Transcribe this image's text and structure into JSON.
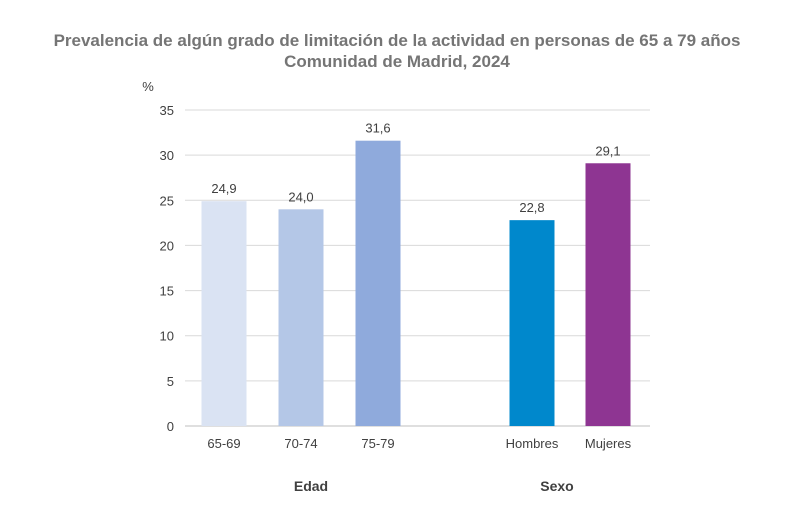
{
  "chart_data": {
    "type": "bar",
    "title": "Prevalencia de algún grado de limitación de la actividad en personas de 65 a 79 años",
    "subtitle": "Comunidad de Madrid, 2024",
    "ylabel": "%",
    "ylim": [
      0,
      35
    ],
    "yticks": [
      0,
      5,
      10,
      15,
      20,
      25,
      30,
      35
    ],
    "grid": true,
    "groups": [
      {
        "label": "Edad",
        "categories": [
          "65-69",
          "70-74",
          "75-79"
        ],
        "values": [
          24.9,
          24.0,
          31.6
        ],
        "value_labels": [
          "24,9",
          "24,0",
          "31,6"
        ],
        "colors": [
          "#dae3f3",
          "#b4c7e7",
          "#8faadc"
        ]
      },
      {
        "label": "Sexo",
        "categories": [
          "Hombres",
          "Mujeres"
        ],
        "values": [
          22.8,
          29.1
        ],
        "value_labels": [
          "22,8",
          "29,1"
        ],
        "colors": [
          "#0088cc",
          "#8e3592"
        ]
      }
    ]
  }
}
